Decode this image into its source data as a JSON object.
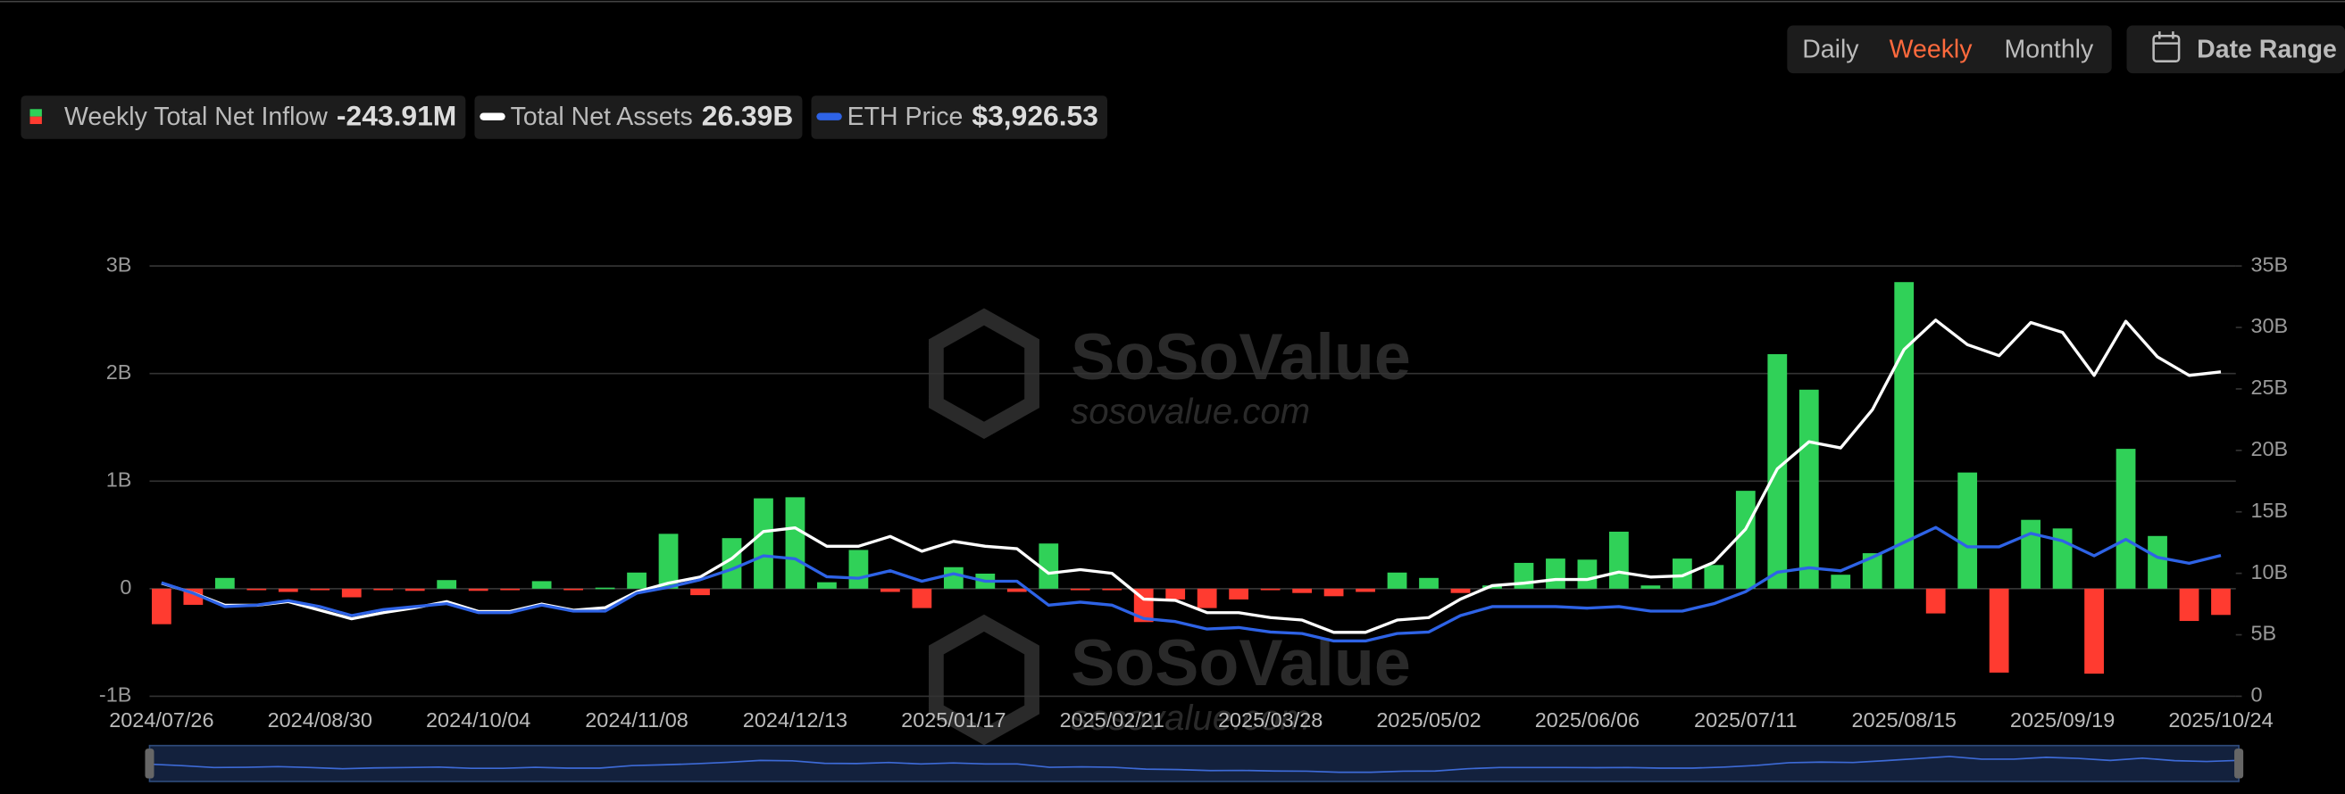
{
  "controls": {
    "periods": [
      "Daily",
      "Weekly",
      "Monthly"
    ],
    "active_period": "Weekly",
    "date_range": "Date Range"
  },
  "watermark": {
    "brand": "SoSoValue",
    "site": "sosovalue.com"
  },
  "chart_data": {
    "type": "bar",
    "categories": [
      "2024/07/26",
      null,
      null,
      null,
      null,
      "2024/08/30",
      null,
      null,
      null,
      null,
      "2024/10/04",
      null,
      null,
      null,
      null,
      "2024/11/08",
      null,
      null,
      null,
      null,
      "2024/12/13",
      null,
      null,
      null,
      null,
      "2025/01/17",
      null,
      null,
      null,
      null,
      "2025/02/21",
      null,
      null,
      null,
      null,
      "2025/03/28",
      null,
      null,
      null,
      null,
      "2025/05/02",
      null,
      null,
      null,
      null,
      "2025/06/06",
      null,
      null,
      null,
      null,
      "2025/07/11",
      null,
      null,
      null,
      null,
      "2025/08/15",
      null,
      null,
      null,
      null,
      "2025/09/19",
      null,
      null,
      null,
      null,
      "2025/10/24"
    ],
    "ylim": [
      -1,
      3
    ],
    "yticks": [
      {
        "value": -1,
        "label": "-1B"
      },
      0,
      {
        "value": 1,
        "label": "1B"
      },
      {
        "value": 2,
        "label": "2B"
      },
      {
        "value": 3,
        "label": "3B"
      }
    ],
    "y2lim": [
      0,
      35
    ],
    "y2ticks": [
      0,
      {
        "value": 5,
        "label": "5B"
      },
      {
        "value": 10,
        "label": "10B"
      },
      {
        "value": 15,
        "label": "15B"
      },
      {
        "value": 20,
        "label": "20B"
      },
      {
        "value": 25,
        "label": "25B"
      },
      {
        "value": 30,
        "label": "30B"
      },
      {
        "value": 35,
        "label": "35B"
      }
    ],
    "y3lim": [
      0,
      12000
    ],
    "grid": true,
    "series": [
      {
        "name": "Weekly Total Net Inflow",
        "type": "bar",
        "positive_color": "#30d158",
        "negative_color": "#ff3b30",
        "legend_value": "-243.91M",
        "values": [
          -0.33,
          -0.15,
          0.1,
          -0.01,
          -0.03,
          -0.01,
          -0.08,
          -0.01,
          -0.02,
          0.08,
          -0.02,
          -0.01,
          0.07,
          -0.01,
          0.01,
          0.15,
          0.51,
          -0.06,
          0.47,
          0.84,
          0.85,
          0.06,
          0.36,
          -0.03,
          -0.18,
          0.2,
          0.14,
          -0.03,
          0.42,
          -0.01,
          -0.01,
          -0.31,
          -0.1,
          -0.18,
          -0.1,
          -0.01,
          -0.04,
          -0.07,
          -0.03,
          0.15,
          0.1,
          -0.04,
          0.03,
          0.24,
          0.28,
          0.27,
          0.53,
          0.03,
          0.28,
          0.22,
          0.91,
          2.18,
          1.85,
          0.13,
          0.33,
          2.85,
          -0.23,
          1.08,
          -0.78,
          0.64,
          0.56,
          -0.79,
          1.3,
          0.49,
          -0.3,
          -0.24391
        ]
      },
      {
        "name": "Total Net Assets",
        "type": "line",
        "axis": "y2",
        "color": "#ffffff",
        "legend_value": "26.39B",
        "values": [
          9.2,
          8.4,
          7.4,
          7.4,
          7.7,
          7.0,
          6.3,
          6.8,
          7.2,
          7.7,
          6.9,
          6.9,
          7.5,
          7.0,
          7.2,
          8.5,
          9.2,
          9.7,
          11.2,
          13.4,
          13.7,
          12.2,
          12.2,
          13.0,
          11.8,
          12.6,
          12.2,
          12.0,
          10.0,
          10.3,
          10.0,
          7.9,
          7.8,
          6.8,
          6.8,
          6.4,
          6.2,
          5.2,
          5.2,
          6.2,
          6.4,
          7.9,
          9.0,
          9.2,
          9.5,
          9.5,
          10.1,
          9.7,
          9.8,
          10.9,
          13.6,
          18.5,
          20.7,
          20.2,
          23.3,
          28.2,
          30.6,
          28.6,
          27.7,
          30.4,
          29.6,
          26.1,
          30.5,
          27.6,
          26.1,
          26.39
        ]
      },
      {
        "name": "ETH Price",
        "type": "line",
        "axis": "y3",
        "color": "#2e63e6",
        "legend_value": "$3,926.53",
        "values": [
          3167,
          2875,
          2500,
          2542,
          2667,
          2500,
          2250,
          2417,
          2500,
          2583,
          2333,
          2333,
          2542,
          2375,
          2375,
          2875,
          3042,
          3250,
          3542,
          3917,
          3833,
          3333,
          3292,
          3500,
          3208,
          3417,
          3208,
          3208,
          2542,
          2625,
          2542,
          2167,
          2083,
          1875,
          1917,
          1792,
          1750,
          1542,
          1542,
          1750,
          1792,
          2250,
          2500,
          2500,
          2500,
          2458,
          2500,
          2375,
          2375,
          2583,
          2917,
          3458,
          3583,
          3500,
          3875,
          4292,
          4708,
          4167,
          4167,
          4542,
          4333,
          3917,
          4375,
          3875,
          3708,
          3926.53
        ]
      }
    ]
  }
}
